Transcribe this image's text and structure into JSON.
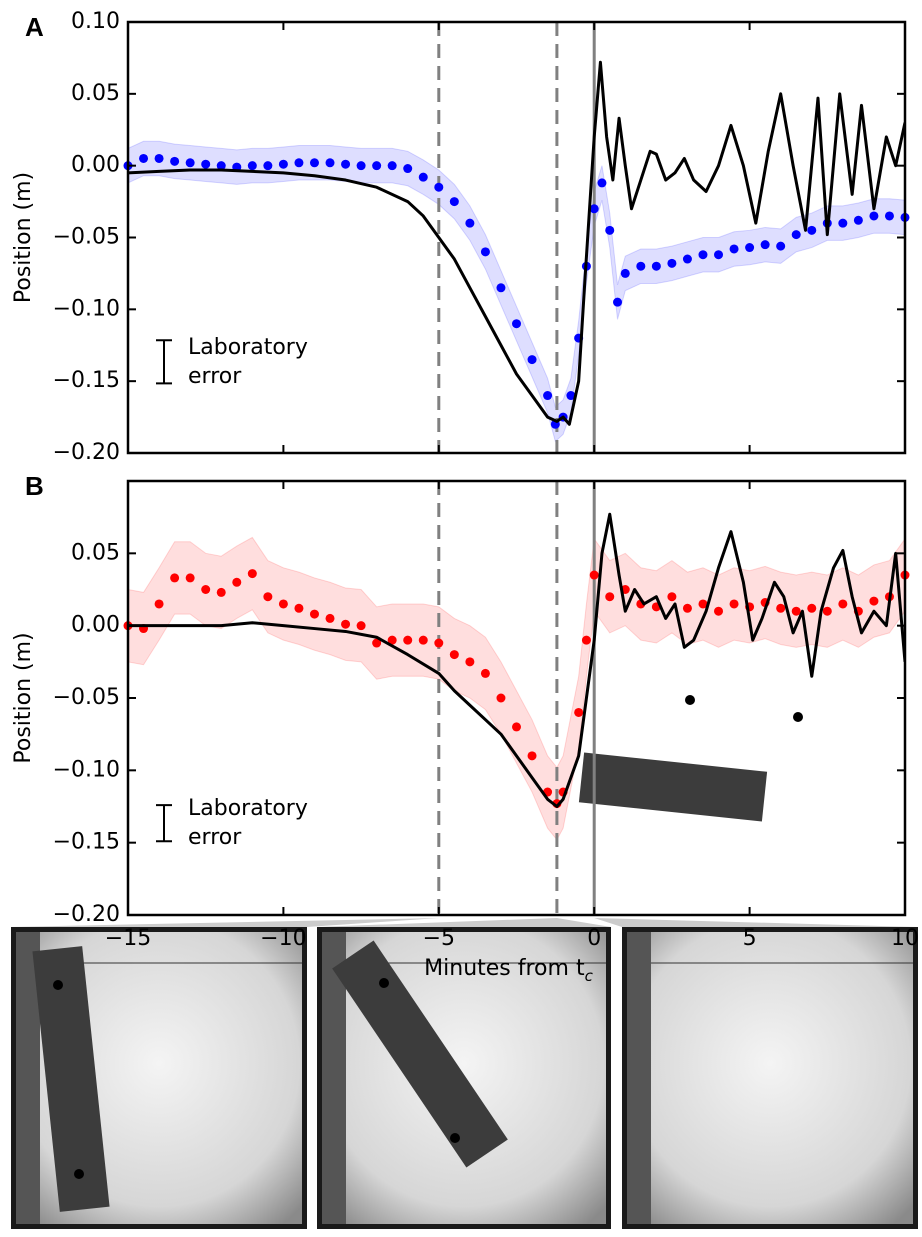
{
  "chart_data": [
    {
      "type": "line",
      "panel_label": "A",
      "ylabel": "Position (m)",
      "xlim": [
        -15,
        10
      ],
      "xticks": [
        -15,
        -10,
        -5,
        0,
        5,
        10
      ],
      "ylim": [
        -0.2,
        0.1
      ],
      "yticks": [
        {
          "value": 0.1,
          "label": "0.10"
        },
        {
          "value": 0.05,
          "label": "0.05"
        },
        {
          "value": 0,
          "label": "0.00"
        },
        {
          "value": -0.05,
          "label": "−0.05"
        },
        {
          "value": -0.1,
          "label": "−0.10"
        },
        {
          "value": -0.15,
          "label": "−0.15"
        },
        {
          "value": -0.2,
          "label": "−0.20"
        }
      ],
      "vlines": [
        {
          "x": -5,
          "dashed": true
        },
        {
          "x": -1.2,
          "dashed": true
        },
        {
          "x": 0,
          "dashed": false
        }
      ],
      "annotation": {
        "lines": [
          "Laboratory",
          "error"
        ],
        "error": 0.03
      },
      "series": [
        {
          "color": "#0000ff",
          "marker": "dot",
          "error": 0.012,
          "x": [
            -15,
            -14.5,
            -14,
            -13.5,
            -13,
            -12.5,
            -12,
            -11.5,
            -11,
            -10.5,
            -10,
            -9.5,
            -9,
            -8.5,
            -8,
            -7.5,
            -7,
            -6.5,
            -6,
            -5.5,
            -5,
            -4.5,
            -4,
            -3.5,
            -3,
            -2.5,
            -2,
            -1.5,
            -1.25,
            -1,
            -0.75,
            -0.5,
            -0.25,
            0,
            0.25,
            0.5,
            0.75,
            1,
            1.5,
            2,
            2.5,
            3,
            3.5,
            4,
            4.5,
            5,
            5.5,
            6,
            6.5,
            7,
            7.5,
            8,
            8.5,
            9,
            9.5,
            10
          ],
          "values": [
            0,
            0.005,
            0.005,
            0.003,
            0.002,
            0.001,
            0,
            -0.001,
            0,
            0,
            0.001,
            0.002,
            0.002,
            0.002,
            0.001,
            0,
            0,
            0,
            -0.002,
            -0.008,
            -0.015,
            -0.025,
            -0.04,
            -0.06,
            -0.085,
            -0.11,
            -0.135,
            -0.16,
            -0.18,
            -0.175,
            -0.16,
            -0.12,
            -0.07,
            -0.03,
            -0.012,
            -0.045,
            -0.095,
            -0.075,
            -0.07,
            -0.07,
            -0.068,
            -0.065,
            -0.062,
            -0.062,
            -0.058,
            -0.057,
            -0.055,
            -0.056,
            -0.048,
            -0.045,
            -0.04,
            -0.04,
            -0.038,
            -0.035,
            -0.035,
            -0.036
          ]
        },
        {
          "color": "#000000",
          "marker": "line",
          "x": [
            -15,
            -14,
            -13,
            -12,
            -11,
            -10,
            -9,
            -8,
            -7,
            -6,
            -5.5,
            -5,
            -4.5,
            -4,
            -3.5,
            -3,
            -2.5,
            -2,
            -1.5,
            -1.2,
            -1,
            -0.8,
            -0.5,
            -0.3,
            0,
            0.2,
            0.4,
            0.6,
            0.8,
            1,
            1.2,
            1.5,
            1.8,
            2,
            2.3,
            2.6,
            2.9,
            3.2,
            3.6,
            4,
            4.4,
            4.8,
            5.2,
            5.6,
            6,
            6.4,
            6.8,
            7.2,
            7.5,
            7.9,
            8.3,
            8.6,
            9,
            9.4,
            9.7,
            10
          ],
          "values": [
            -0.005,
            -0.004,
            -0.003,
            -0.003,
            -0.004,
            -0.005,
            -0.007,
            -0.01,
            -0.015,
            -0.025,
            -0.035,
            -0.05,
            -0.065,
            -0.085,
            -0.105,
            -0.125,
            -0.145,
            -0.16,
            -0.175,
            -0.178,
            -0.175,
            -0.18,
            -0.15,
            -0.08,
            0.02,
            0.072,
            0.02,
            -0.01,
            0.033,
            0,
            -0.03,
            -0.01,
            0.01,
            0.008,
            -0.01,
            -0.005,
            0.005,
            -0.01,
            -0.018,
            0,
            0.028,
            0,
            -0.04,
            0.01,
            0.05,
            0,
            -0.045,
            0.047,
            -0.048,
            0.05,
            -0.02,
            0.042,
            -0.03,
            0.02,
            0,
            0.03
          ]
        }
      ]
    },
    {
      "type": "line",
      "panel_label": "B",
      "ylabel": "Position (m)",
      "xlabel": "Minutes from t",
      "xlabel_sub": "c",
      "xlim": [
        -15,
        10
      ],
      "xticks": [
        {
          "value": -15,
          "label": "−15"
        },
        {
          "value": -10,
          "label": "−10"
        },
        {
          "value": -5,
          "label": "−5"
        },
        0,
        5,
        10
      ],
      "ylim": [
        -0.2,
        0.1
      ],
      "yticks": [
        {
          "value": 0.05,
          "label": "0.05"
        },
        {
          "value": 0,
          "label": "0.00"
        },
        {
          "value": -0.05,
          "label": "−0.05"
        },
        {
          "value": -0.1,
          "label": "−0.10"
        },
        {
          "value": -0.15,
          "label": "−0.15"
        },
        {
          "value": -0.2,
          "label": "−0.20"
        }
      ],
      "vlines": [
        {
          "x": -5,
          "dashed": true
        },
        {
          "x": -1.2,
          "dashed": true
        },
        {
          "x": 0,
          "dashed": false
        }
      ],
      "annotation": {
        "lines": [
          "Laboratory",
          "error"
        ],
        "error": 0.025
      },
      "series": [
        {
          "color": "#ff0000",
          "marker": "dot",
          "error": 0.025,
          "x": [
            -15,
            -14.5,
            -14,
            -13.5,
            -13,
            -12.5,
            -12,
            -11.5,
            -11,
            -10.5,
            -10,
            -9.5,
            -9,
            -8.5,
            -8,
            -7.5,
            -7,
            -6.5,
            -6,
            -5.5,
            -5,
            -4.5,
            -4,
            -3.5,
            -3,
            -2.5,
            -2,
            -1.5,
            -1.2,
            -1,
            -0.5,
            -0.25,
            0,
            0.5,
            1,
            1.5,
            2,
            2.5,
            3,
            3.5,
            4,
            4.5,
            5,
            5.5,
            6,
            6.5,
            7,
            7.5,
            8,
            8.5,
            9,
            9.5,
            10
          ],
          "values": [
            0,
            -0.002,
            0.015,
            0.033,
            0.033,
            0.025,
            0.023,
            0.03,
            0.036,
            0.02,
            0.015,
            0.012,
            0.008,
            0.005,
            0.001,
            0,
            -0.012,
            -0.01,
            -0.01,
            -0.01,
            -0.012,
            -0.02,
            -0.025,
            -0.033,
            -0.05,
            -0.07,
            -0.09,
            -0.115,
            -0.123,
            -0.115,
            -0.06,
            -0.01,
            0.035,
            0.02,
            0.025,
            0.015,
            0.013,
            0.02,
            0.012,
            0.015,
            0.01,
            0.015,
            0.013,
            0.016,
            0.012,
            0.01,
            0.012,
            0.01,
            0.015,
            0.01,
            0.017,
            0.02,
            0.035
          ]
        },
        {
          "color": "#000000",
          "marker": "line",
          "x": [
            -15,
            -14,
            -13,
            -12,
            -11,
            -10,
            -9,
            -8,
            -7,
            -6,
            -5,
            -4.5,
            -4,
            -3.5,
            -3,
            -2.5,
            -2,
            -1.5,
            -1.2,
            -1,
            -0.5,
            0,
            0.25,
            0.5,
            0.8,
            1,
            1.3,
            1.6,
            2,
            2.3,
            2.6,
            2.9,
            3.2,
            3.6,
            4,
            4.4,
            4.8,
            5.1,
            5.4,
            5.8,
            6.1,
            6.4,
            6.7,
            7,
            7.3,
            7.7,
            8,
            8.3,
            8.6,
            9,
            9.4,
            9.7,
            10
          ],
          "values": [
            0,
            0,
            0,
            0,
            0.002,
            0,
            -0.002,
            -0.004,
            -0.008,
            -0.02,
            -0.033,
            -0.045,
            -0.055,
            -0.065,
            -0.075,
            -0.09,
            -0.105,
            -0.12,
            -0.125,
            -0.12,
            -0.09,
            -0.01,
            0.05,
            0.077,
            0.035,
            0.01,
            0.025,
            0.015,
            0.02,
            0.005,
            0.015,
            -0.015,
            -0.01,
            0.01,
            0.04,
            0.065,
            0.03,
            -0.01,
            0.005,
            0.03,
            0.02,
            -0.005,
            0.01,
            -0.035,
            0.01,
            0.04,
            0.052,
            0.02,
            -0.005,
            0.01,
            0,
            0.05,
            -0.025
          ]
        }
      ]
    }
  ]
}
